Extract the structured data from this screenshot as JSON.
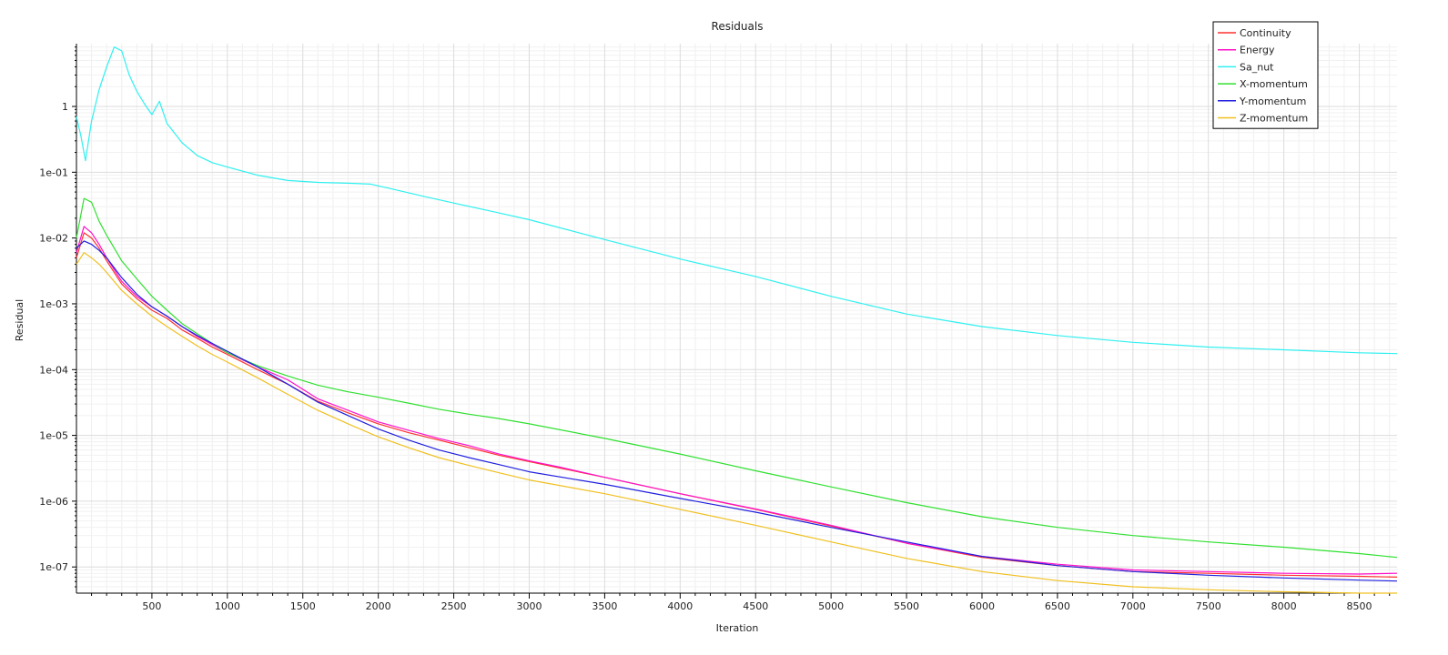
{
  "chart_data": {
    "type": "line",
    "title": "Residuals",
    "xlabel": "Iteration",
    "ylabel": "Residual",
    "xlim": [
      0,
      8750
    ],
    "ylim": [
      4e-08,
      9
    ],
    "yscale": "log",
    "grid": true,
    "legend": "top-right",
    "x_ticks": [
      500,
      1000,
      1500,
      2000,
      2500,
      3000,
      3500,
      4000,
      4500,
      5000,
      5500,
      6000,
      6500,
      7000,
      7500,
      8000,
      8500
    ],
    "x_tick_labels": [
      "500",
      "1000",
      "1500",
      "2000",
      "2500",
      "3000",
      "3500",
      "4000",
      "4500",
      "5000",
      "5500",
      "6000",
      "6500",
      "7000",
      "7500",
      "8000",
      "8500"
    ],
    "y_ticks": [
      1,
      0.1,
      0.01,
      0.001,
      0.0001,
      1e-05,
      1e-06,
      1e-07
    ],
    "y_tick_labels": [
      "1",
      "1e-01",
      "1e-02",
      "1e-03",
      "1e-04",
      "1e-05",
      "1e-06",
      "1e-07"
    ],
    "series": [
      {
        "name": "Continuity",
        "color": "#ff3030",
        "x": [
          0,
          50,
          100,
          150,
          200,
          300,
          400,
          500,
          600,
          700,
          800,
          900,
          1000,
          1200,
          1400,
          1600,
          1800,
          2000,
          2200,
          2400,
          2600,
          2800,
          3000,
          3200,
          3500,
          4000,
          4500,
          5000,
          5500,
          6000,
          6500,
          7000,
          7500,
          8000,
          8500,
          8750
        ],
        "y": [
          0.005,
          0.012,
          0.01,
          0.007,
          0.0045,
          0.002,
          0.0012,
          0.0008,
          0.0006,
          0.0004,
          0.0003,
          0.00022,
          0.00017,
          0.0001,
          6e-05,
          3.3e-05,
          2.2e-05,
          1.5e-05,
          1.1e-05,
          8.5e-06,
          6.5e-06,
          5e-06,
          4e-06,
          3.2e-06,
          2.3e-06,
          1.3e-06,
          7.5e-07,
          4.2e-07,
          2.3e-07,
          1.4e-07,
          1.05e-07,
          8.5e-08,
          8e-08,
          7.5e-08,
          7.2e-08,
          7e-08
        ]
      },
      {
        "name": "Energy",
        "color": "#ff10c8",
        "x": [
          0,
          50,
          100,
          150,
          200,
          300,
          400,
          500,
          600,
          700,
          800,
          900,
          1000,
          1200,
          1400,
          1600,
          1800,
          2000,
          2200,
          2400,
          2600,
          2800,
          3000,
          3200,
          3500,
          4000,
          4500,
          5000,
          5500,
          6000,
          6500,
          7000,
          7500,
          8000,
          8500,
          8750
        ],
        "y": [
          0.006,
          0.015,
          0.012,
          0.008,
          0.005,
          0.0022,
          0.0013,
          0.0009,
          0.00065,
          0.00045,
          0.00032,
          0.00024,
          0.00018,
          0.00011,
          7e-05,
          3.6e-05,
          2.4e-05,
          1.6e-05,
          1.2e-05,
          9e-06,
          7e-06,
          5.2e-06,
          4.1e-06,
          3.3e-06,
          2.3e-06,
          1.3e-06,
          7.6e-07,
          4.3e-07,
          2.3e-07,
          1.45e-07,
          1.1e-07,
          9e-08,
          8.5e-08,
          8e-08,
          7.8e-08,
          8e-08
        ]
      },
      {
        "name": "Sa_nut",
        "color": "#30f0f0",
        "x": [
          0,
          30,
          60,
          100,
          150,
          200,
          250,
          300,
          350,
          400,
          450,
          500,
          550,
          600,
          700,
          800,
          900,
          1000,
          1200,
          1400,
          1600,
          1800,
          1950,
          2100,
          2300,
          2500,
          2800,
          3000,
          3500,
          4000,
          4500,
          5000,
          5500,
          6000,
          6500,
          7000,
          7500,
          8000,
          8500,
          8750
        ],
        "y": [
          0.7,
          0.35,
          0.15,
          0.6,
          1.8,
          4,
          8,
          7,
          3,
          1.7,
          1.1,
          0.75,
          1.2,
          0.55,
          0.28,
          0.18,
          0.14,
          0.12,
          0.09,
          0.075,
          0.07,
          0.068,
          0.066,
          0.055,
          0.043,
          0.034,
          0.024,
          0.019,
          0.0095,
          0.0048,
          0.0026,
          0.0013,
          0.0007,
          0.00045,
          0.00033,
          0.00026,
          0.00022,
          0.0002,
          0.00018,
          0.000175
        ]
      },
      {
        "name": "X-momentum",
        "color": "#30e030",
        "x": [
          0,
          50,
          100,
          150,
          200,
          300,
          400,
          500,
          600,
          700,
          800,
          900,
          1000,
          1200,
          1400,
          1600,
          1800,
          2000,
          2200,
          2400,
          2600,
          2800,
          3000,
          3500,
          4000,
          4500,
          5000,
          5500,
          6000,
          6500,
          7000,
          7500,
          8000,
          8500,
          8750
        ],
        "y": [
          0.01,
          0.04,
          0.035,
          0.018,
          0.011,
          0.0045,
          0.0024,
          0.0013,
          0.0008,
          0.0005,
          0.00035,
          0.00025,
          0.00018,
          0.000115,
          8e-05,
          5.8e-05,
          4.6e-05,
          3.8e-05,
          3.1e-05,
          2.5e-05,
          2.1e-05,
          1.8e-05,
          1.5e-05,
          9e-06,
          5.2e-06,
          2.9e-06,
          1.65e-06,
          9.5e-07,
          5.8e-07,
          4e-07,
          3e-07,
          2.4e-07,
          2e-07,
          1.6e-07,
          1.4e-07
        ]
      },
      {
        "name": "Y-momentum",
        "color": "#2020e0",
        "x": [
          0,
          50,
          100,
          150,
          200,
          300,
          400,
          500,
          600,
          700,
          800,
          900,
          1000,
          1200,
          1400,
          1600,
          1800,
          2000,
          2200,
          2400,
          2600,
          2800,
          3000,
          3500,
          4000,
          4500,
          5000,
          5500,
          6000,
          6500,
          7000,
          7500,
          8000,
          8500,
          8750
        ],
        "y": [
          0.007,
          0.009,
          0.008,
          0.0065,
          0.005,
          0.0025,
          0.0014,
          0.0009,
          0.00065,
          0.00045,
          0.00033,
          0.00025,
          0.00019,
          0.00011,
          6e-05,
          3.2e-05,
          2e-05,
          1.25e-05,
          8.5e-06,
          6e-06,
          4.6e-06,
          3.6e-06,
          2.8e-06,
          1.8e-06,
          1.1e-06,
          6.8e-07,
          4e-07,
          2.4e-07,
          1.45e-07,
          1.05e-07,
          8.5e-08,
          7.5e-08,
          6.8e-08,
          6.3e-08,
          6.1e-08
        ]
      },
      {
        "name": "Z-momentum",
        "color": "#f0c020",
        "x": [
          0,
          50,
          100,
          150,
          200,
          300,
          400,
          500,
          600,
          700,
          800,
          900,
          1000,
          1200,
          1400,
          1600,
          1800,
          2000,
          2200,
          2400,
          2600,
          2800,
          3000,
          3500,
          4000,
          4500,
          5000,
          5500,
          6000,
          6500,
          7000,
          7500,
          8000,
          8500,
          8750
        ],
        "y": [
          0.004,
          0.006,
          0.005,
          0.004,
          0.003,
          0.0016,
          0.001,
          0.00065,
          0.00045,
          0.00032,
          0.00023,
          0.00017,
          0.00013,
          7.5e-05,
          4.2e-05,
          2.4e-05,
          1.5e-05,
          9.5e-06,
          6.5e-06,
          4.6e-06,
          3.5e-06,
          2.7e-06,
          2.1e-06,
          1.3e-06,
          7.5e-07,
          4.3e-07,
          2.4e-07,
          1.35e-07,
          8.5e-08,
          6.2e-08,
          5e-08,
          4.5e-08,
          4.2e-08,
          4e-08,
          3.9e-08
        ]
      }
    ]
  }
}
